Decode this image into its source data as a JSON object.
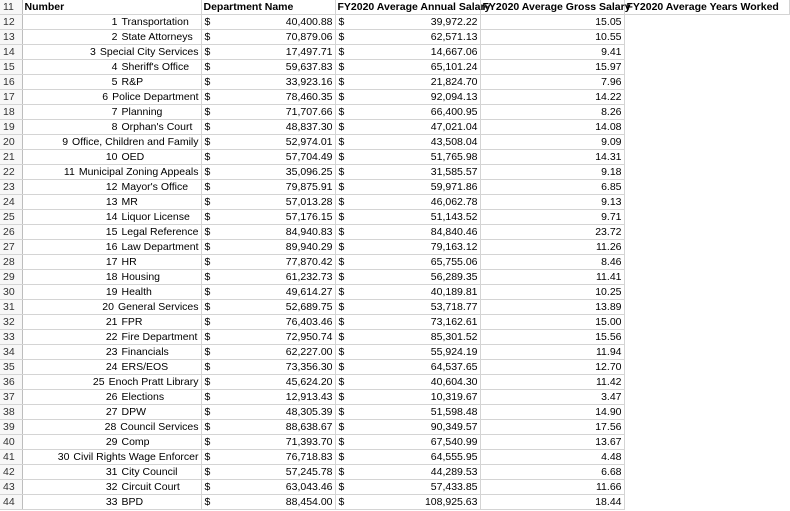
{
  "header": {
    "row_number": "11",
    "number": "Number",
    "department": "Department Name",
    "avg_annual": "FY2020 Average Annual Salary",
    "avg_gross": "FY2020 Average Gross Salary",
    "avg_years": "FY2020 Average Years Worked"
  },
  "currency_symbol": "$",
  "rows": [
    {
      "row": "12",
      "num": "1",
      "dept": "Transportation",
      "annual": "40,400.88",
      "gross": "39,972.22",
      "years": "15.05"
    },
    {
      "row": "13",
      "num": "2",
      "dept": "State Attorneys",
      "annual": "70,879.06",
      "gross": "62,571.13",
      "years": "10.55"
    },
    {
      "row": "14",
      "num": "3",
      "dept": "Special City Services",
      "annual": "17,497.71",
      "gross": "14,667.06",
      "years": "9.41"
    },
    {
      "row": "15",
      "num": "4",
      "dept": "Sheriff's Office",
      "annual": "59,637.83",
      "gross": "65,101.24",
      "years": "15.97"
    },
    {
      "row": "16",
      "num": "5",
      "dept": "R&P",
      "annual": "33,923.16",
      "gross": "21,824.70",
      "years": "7.96"
    },
    {
      "row": "17",
      "num": "6",
      "dept": "Police Department",
      "annual": "78,460.35",
      "gross": "92,094.13",
      "years": "14.22"
    },
    {
      "row": "18",
      "num": "7",
      "dept": "Planning",
      "annual": "71,707.66",
      "gross": "66,400.95",
      "years": "8.26"
    },
    {
      "row": "19",
      "num": "8",
      "dept": "Orphan's Court",
      "annual": "48,837.30",
      "gross": "47,021.04",
      "years": "14.08"
    },
    {
      "row": "20",
      "num": "9",
      "dept": "Office, Children and Family",
      "annual": "52,974.01",
      "gross": "43,508.04",
      "years": "9.09"
    },
    {
      "row": "21",
      "num": "10",
      "dept": "OED",
      "annual": "57,704.49",
      "gross": "51,765.98",
      "years": "14.31"
    },
    {
      "row": "22",
      "num": "11",
      "dept": "Municipal Zoning Appeals",
      "annual": "35,096.25",
      "gross": "31,585.57",
      "years": "9.18"
    },
    {
      "row": "23",
      "num": "12",
      "dept": "Mayor's Office",
      "annual": "79,875.91",
      "gross": "59,971.86",
      "years": "6.85"
    },
    {
      "row": "24",
      "num": "13",
      "dept": "MR",
      "annual": "57,013.28",
      "gross": "46,062.78",
      "years": "9.13"
    },
    {
      "row": "25",
      "num": "14",
      "dept": "Liquor License",
      "annual": "57,176.15",
      "gross": "51,143.52",
      "years": "9.71"
    },
    {
      "row": "26",
      "num": "15",
      "dept": "Legal Reference",
      "annual": "84,940.83",
      "gross": "84,840.46",
      "years": "23.72"
    },
    {
      "row": "27",
      "num": "16",
      "dept": "Law Department",
      "annual": "89,940.29",
      "gross": "79,163.12",
      "years": "11.26"
    },
    {
      "row": "28",
      "num": "17",
      "dept": "HR",
      "annual": "77,870.42",
      "gross": "65,755.06",
      "years": "8.46"
    },
    {
      "row": "29",
      "num": "18",
      "dept": "Housing",
      "annual": "61,232.73",
      "gross": "56,289.35",
      "years": "11.41"
    },
    {
      "row": "30",
      "num": "19",
      "dept": "Health",
      "annual": "49,614.27",
      "gross": "40,189.81",
      "years": "10.25"
    },
    {
      "row": "31",
      "num": "20",
      "dept": "General Services",
      "annual": "52,689.75",
      "gross": "53,718.77",
      "years": "13.89"
    },
    {
      "row": "32",
      "num": "21",
      "dept": "FPR",
      "annual": "76,403.46",
      "gross": "73,162.61",
      "years": "15.00"
    },
    {
      "row": "33",
      "num": "22",
      "dept": "Fire Department",
      "annual": "72,950.74",
      "gross": "85,301.52",
      "years": "15.56"
    },
    {
      "row": "34",
      "num": "23",
      "dept": "Financials",
      "annual": "62,227.00",
      "gross": "55,924.19",
      "years": "11.94"
    },
    {
      "row": "35",
      "num": "24",
      "dept": "ERS/EOS",
      "annual": "73,356.30",
      "gross": "64,537.65",
      "years": "12.70"
    },
    {
      "row": "36",
      "num": "25",
      "dept": "Enoch Pratt Library",
      "annual": "45,624.20",
      "gross": "40,604.30",
      "years": "11.42"
    },
    {
      "row": "37",
      "num": "26",
      "dept": "Elections",
      "annual": "12,913.43",
      "gross": "10,319.67",
      "years": "3.47"
    },
    {
      "row": "38",
      "num": "27",
      "dept": "DPW",
      "annual": "48,305.39",
      "gross": "51,598.48",
      "years": "14.90"
    },
    {
      "row": "39",
      "num": "28",
      "dept": "Council Services",
      "annual": "88,638.67",
      "gross": "90,349.57",
      "years": "17.56"
    },
    {
      "row": "40",
      "num": "29",
      "dept": "Comp",
      "annual": "71,393.70",
      "gross": "67,540.99",
      "years": "13.67"
    },
    {
      "row": "41",
      "num": "30",
      "dept": "Civil Rights Wage Enforcer",
      "annual": "76,718.83",
      "gross": "64,555.95",
      "years": "4.48"
    },
    {
      "row": "42",
      "num": "31",
      "dept": "City Council",
      "annual": "57,245.78",
      "gross": "44,289.53",
      "years": "6.68"
    },
    {
      "row": "43",
      "num": "32",
      "dept": "Circuit Court",
      "annual": "63,043.46",
      "gross": "57,433.85",
      "years": "11.66"
    },
    {
      "row": "44",
      "num": "33",
      "dept": "BPD",
      "annual": "88,454.00",
      "gross": "108,925.63",
      "years": "18.44"
    }
  ]
}
